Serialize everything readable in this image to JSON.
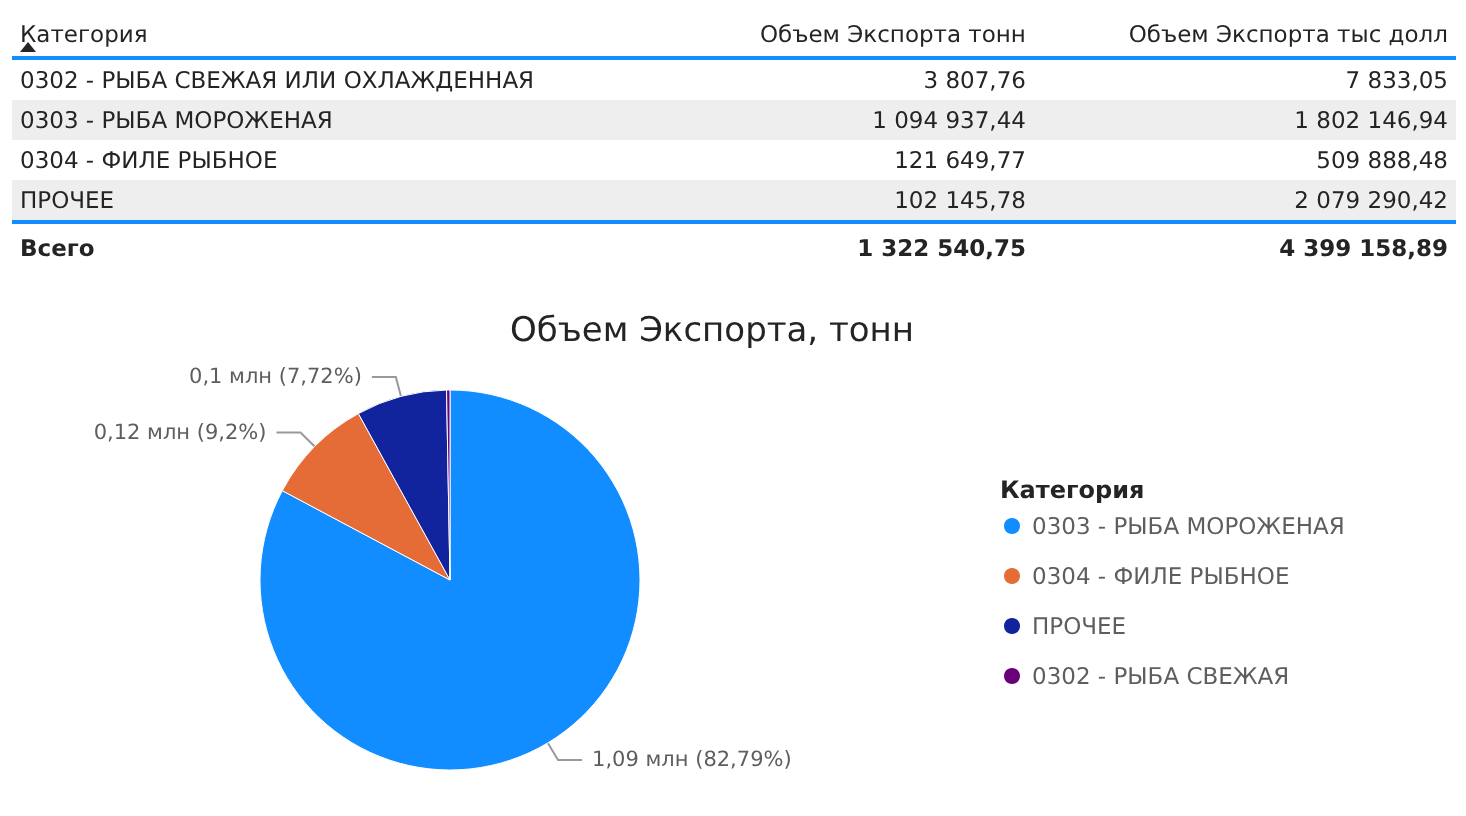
{
  "chart_data": [
    {
      "type": "other",
      "xlabel": "Категория",
      "categories": [
        "0302 - РЫБА СВЕЖАЯ ИЛИ ОХЛАЖДЕННАЯ",
        "0303 - РЫБА МОРОЖЕНАЯ",
        "0304 - ФИЛЕ РЫБНОЕ",
        "ПРОЧЕЕ"
      ],
      "series": [
        {
          "name": "Объем Экспорта тонн",
          "values": [
            3807.76,
            1094937.44,
            121649.77,
            102145.78
          ],
          "value_labels": [
            "3 807,76",
            "1 094 937,44",
            "121 649,77",
            "102 145,78"
          ]
        },
        {
          "name": "Объем Экспорта тыс долл",
          "values": [
            7833.05,
            1802146.94,
            509888.48,
            2079290.42
          ],
          "value_labels": [
            "7 833,05",
            "1 802 146,94",
            "509 888,48",
            "2 079 290,42"
          ]
        }
      ],
      "totals": [
        "1 322 540,75",
        "4 399 158,89"
      ],
      "annotations": [
        "Всего"
      ]
    },
    {
      "type": "pie",
      "title": "Объем Экспорта, тонн",
      "legend_title": "Категория",
      "legend": "right",
      "categories": [
        "0303 - РЫБА МОРОЖЕНАЯ",
        "0304 - ФИЛЕ РЫБНОЕ",
        "ПРОЧЕЕ",
        "0302 - РЫБА СВЕЖАЯ"
      ],
      "values": [
        82.79,
        9.2,
        7.72,
        0.29
      ],
      "colors": [
        "#118dff",
        "#e66c37",
        "#12239e",
        "#6b007b"
      ],
      "value_labels": [
        "1,09 млн (82,79%)",
        "0,12 млн (9,2%)",
        "0,1 млн (7,72%)",
        null
      ]
    }
  ]
}
